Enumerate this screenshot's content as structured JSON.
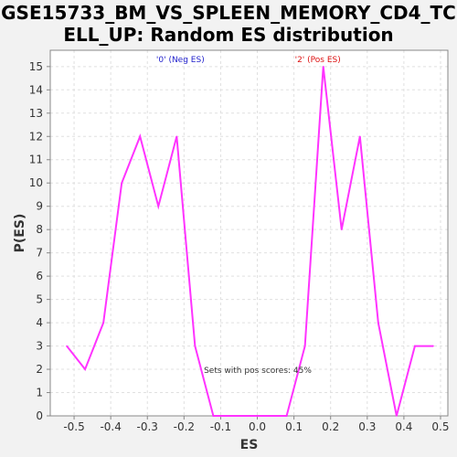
{
  "chart_data": {
    "type": "line",
    "title": "GSE15733_BM_VS_SPLEEN_MEMORY_CD4_TCELL_UP: Random ES distribution",
    "xlabel": "ES",
    "ylabel": "P(ES)",
    "xlim": [
      -0.565,
      0.52
    ],
    "ylim": [
      0,
      15.7
    ],
    "xticks": [
      -0.5,
      -0.4,
      -0.3,
      -0.2,
      -0.1,
      0.0,
      0.1,
      0.2,
      0.3,
      0.4,
      0.5
    ],
    "xtick_labels": [
      "-0.5",
      "-0.4",
      "-0.3",
      "-0.2",
      "-0.1",
      "0.0",
      "0.1",
      "0.2",
      "0.3",
      "0.4",
      "0.5"
    ],
    "yticks": [
      0,
      1,
      2,
      3,
      4,
      5,
      6,
      7,
      8,
      9,
      10,
      11,
      12,
      13,
      14,
      15
    ],
    "grid": true,
    "series": [
      {
        "color": "#ff33ff",
        "x": [
          -0.52,
          -0.47,
          -0.42,
          -0.37,
          -0.32,
          -0.27,
          -0.22,
          -0.17,
          -0.12,
          -0.07,
          -0.02,
          0.03,
          0.08,
          0.13,
          0.18,
          0.23,
          0.28,
          0.33,
          0.38,
          0.43,
          0.48
        ],
        "y": [
          3,
          2,
          4,
          10,
          12,
          9,
          12,
          3,
          0,
          0,
          0,
          0,
          0,
          3,
          15,
          8,
          12,
          4,
          0,
          3,
          3
        ]
      }
    ],
    "legend": {
      "neg": {
        "text": "'0' (Neg ES)",
        "color": "#2222cc"
      },
      "pos": {
        "text": "'2' (Pos ES)",
        "color": "#dd1111"
      }
    },
    "annotation": "Sets with pos scores: 45%"
  }
}
